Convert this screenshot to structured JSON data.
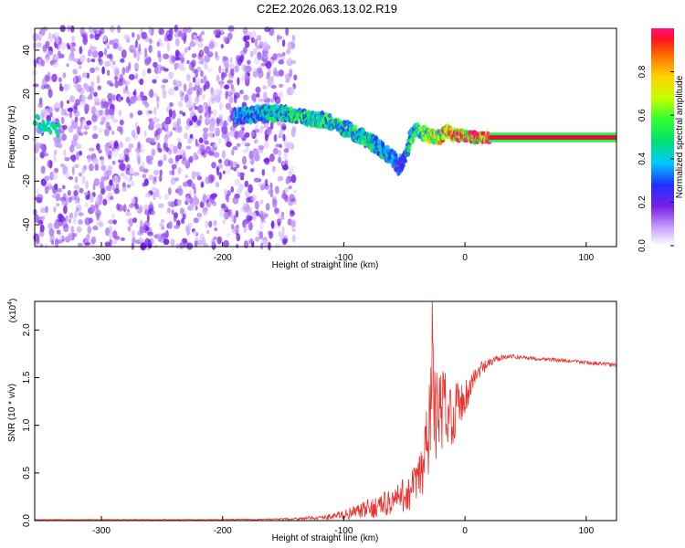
{
  "title": "C2E2.2026.063.13.02.R19",
  "colors": {
    "spectrogram_dot": "#6a1ee6",
    "snr_line": "#e8322f",
    "ridge_stable": "#e0103a",
    "ridge_fringe": "#40e040"
  },
  "chart_data": [
    {
      "type": "heatmap",
      "name": "spectrogram",
      "title": "C2E2.2026.063.13.02.R19",
      "xlabel": "Height of straight line (km)",
      "ylabel": "Frequency (Hz)",
      "xlim": [
        -355,
        125
      ],
      "ylim": [
        -50,
        50
      ],
      "xticks": [
        -300,
        -200,
        -100,
        0,
        100
      ],
      "yticks": [
        -40,
        -20,
        0,
        20,
        40
      ],
      "colorbar": {
        "label": "Normalized spectral amplitude",
        "range": [
          0,
          1
        ],
        "ticks": [
          "0.0",
          "0.2",
          "0.4",
          "0.6",
          "0.8"
        ],
        "tick_values": [
          0.0,
          0.2,
          0.4,
          0.6,
          0.8
        ]
      },
      "noise_region": {
        "x": [
          -355,
          -140
        ],
        "y": [
          -50,
          50
        ],
        "amplitude": 0.12
      },
      "ridge": {
        "x": [
          -355,
          -340,
          -250,
          -185,
          -170,
          -150,
          -130,
          -110,
          -95,
          -80,
          -70,
          -60,
          -55,
          -50,
          -45,
          -40,
          -35,
          -30,
          -25,
          -20,
          -15,
          -10,
          0,
          10,
          20,
          125
        ],
        "frequency": [
          7,
          4,
          3,
          10,
          11,
          11,
          9,
          7,
          3,
          -1,
          -5,
          -9,
          -13,
          -10,
          0,
          4,
          2,
          1,
          0,
          0,
          3,
          1,
          1,
          0,
          0,
          0
        ],
        "amplitude": [
          0.3,
          0.3,
          0.3,
          0.35,
          0.4,
          0.45,
          0.5,
          0.5,
          0.5,
          0.45,
          0.4,
          0.35,
          0.3,
          0.3,
          0.5,
          0.55,
          0.6,
          0.65,
          0.7,
          0.75,
          0.8,
          0.85,
          0.9,
          0.95,
          1.0,
          1.0
        ]
      }
    },
    {
      "type": "line",
      "name": "snr",
      "xlabel": "Height of straight line (km)",
      "ylabel": "SNR (10 * v/v)",
      "multiplier": "(x10",
      "multiplier_exponent": "4",
      "multiplier_close": ")",
      "xlim": [
        -355,
        125
      ],
      "ylim": [
        0,
        2.3
      ],
      "xticks": [
        -300,
        -200,
        -100,
        0,
        100
      ],
      "yticks": [
        "0.0",
        "0.5",
        "1.0",
        "1.5",
        "2.0"
      ],
      "ytick_values": [
        0.0,
        0.5,
        1.0,
        1.5,
        2.0
      ],
      "series": [
        {
          "name": "SNR",
          "x": [
            -355,
            -300,
            -200,
            -150,
            -120,
            -100,
            -80,
            -60,
            -45,
            -35,
            -30,
            -27,
            -25,
            -20,
            -15,
            -10,
            -5,
            0,
            10,
            20,
            30,
            40,
            60,
            80,
            100,
            125
          ],
          "values": [
            0.01,
            0.01,
            0.01,
            0.015,
            0.03,
            0.06,
            0.12,
            0.2,
            0.3,
            0.5,
            0.9,
            1.6,
            1.1,
            1.15,
            1.2,
            1.1,
            1.25,
            1.3,
            1.55,
            1.65,
            1.72,
            1.72,
            1.7,
            1.68,
            1.66,
            1.63
          ],
          "noise": [
            0.003,
            0.003,
            0.004,
            0.01,
            0.02,
            0.05,
            0.1,
            0.15,
            0.2,
            0.35,
            0.6,
            0.6,
            0.5,
            0.45,
            0.4,
            0.3,
            0.25,
            0.2,
            0.1,
            0.05,
            0.03,
            0.02,
            0.02,
            0.02,
            0.02,
            0.02
          ],
          "peak": {
            "x": -27,
            "y": 2.3
          }
        }
      ]
    }
  ]
}
